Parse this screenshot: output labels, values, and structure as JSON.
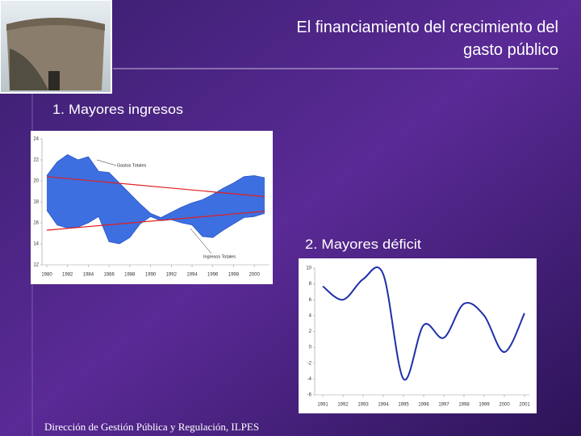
{
  "slide": {
    "title_line1": "El financiamiento del crecimiento del",
    "title_line2": "gasto público",
    "heading1": "1. Mayores ingresos",
    "heading2": "2. Mayores déficit",
    "footer": "Dirección de Gestión Pública y Regulación, ILPES"
  },
  "chart_data": [
    {
      "type": "band",
      "x": [
        1980,
        1981,
        1982,
        1983,
        1984,
        1985,
        1986,
        1987,
        1988,
        1989,
        1990,
        1991,
        1992,
        1993,
        1994,
        1995,
        1996,
        1997,
        1998,
        1999,
        2000,
        2001
      ],
      "fill": "#3d6fe0",
      "series": [
        {
          "name": "Gastos Totales",
          "color": "#2a55c8",
          "values": [
            20.5,
            21.8,
            22.5,
            22.0,
            22.3,
            20.9,
            20.8,
            19.8,
            18.8,
            17.8,
            16.9,
            16.5,
            17.0,
            17.5,
            17.9,
            18.2,
            18.7,
            19.3,
            19.8,
            20.4,
            20.5,
            20.3
          ]
        },
        {
          "name": "Ingresos Totales",
          "color": "#2a55c8",
          "values": [
            17.2,
            15.8,
            15.5,
            15.6,
            16.0,
            16.6,
            14.2,
            14.0,
            14.6,
            15.9,
            16.6,
            16.2,
            16.3,
            16.0,
            15.8,
            14.7,
            14.6,
            15.3,
            15.9,
            16.5,
            16.6,
            16.9
          ]
        }
      ],
      "trend_lines": [
        {
          "color": "#e02020",
          "x": [
            1980,
            2001
          ],
          "values": [
            20.4,
            18.5
          ]
        },
        {
          "color": "#e02020",
          "x": [
            1980,
            2001
          ],
          "values": [
            15.3,
            17.1
          ]
        }
      ],
      "xlim": [
        1980,
        2001
      ],
      "xticks": [
        1980,
        1982,
        1984,
        1986,
        1988,
        1990,
        1992,
        1994,
        1996,
        1998,
        2000
      ],
      "ylim": [
        12,
        24
      ],
      "yticks": [
        12,
        14,
        16,
        18,
        20,
        22,
        24
      ]
    },
    {
      "type": "line",
      "x": [
        1991,
        1992,
        1993,
        1994,
        1995,
        1996,
        1997,
        1998,
        1999,
        2000,
        2001
      ],
      "series": [
        {
          "color": "#1f2fa8",
          "values": [
            7.7,
            6.0,
            8.6,
            9.2,
            -4.0,
            2.8,
            1.2,
            5.5,
            4.0,
            -0.6,
            4.3
          ]
        }
      ],
      "xlim": [
        1991,
        2001
      ],
      "xticks": [
        1991,
        1992,
        1993,
        1994,
        1995,
        1996,
        1997,
        1998,
        1999,
        2000,
        2001
      ],
      "ylim": [
        -6,
        10
      ],
      "yticks": [
        -6,
        -4,
        -2,
        0,
        2,
        4,
        6,
        8,
        10
      ]
    }
  ]
}
